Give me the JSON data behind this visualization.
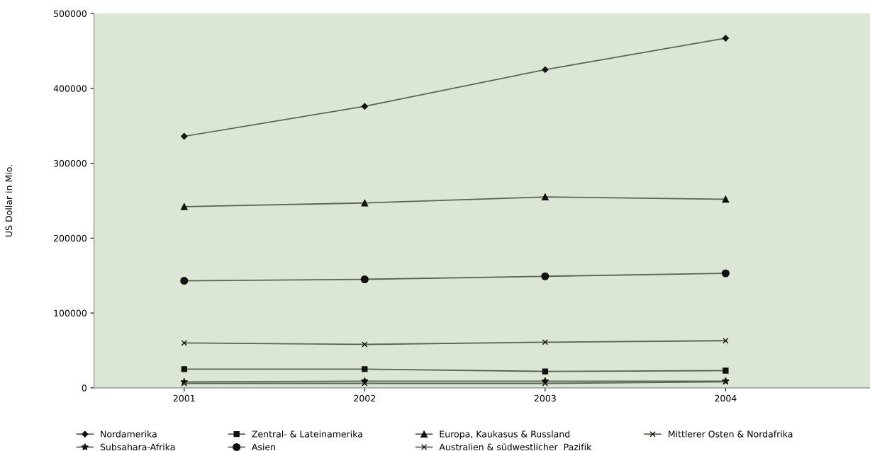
{
  "chart_data": {
    "type": "line",
    "ylabel": "US Dollar in Mio.",
    "categories": [
      "2001",
      "2002",
      "2003",
      "2004"
    ],
    "ylim": [
      0,
      500000
    ],
    "yticks": [
      0,
      100000,
      200000,
      300000,
      400000,
      500000
    ],
    "grid": false,
    "legend": "bottom",
    "line_style": "solid",
    "series": [
      {
        "name": "Nordamerika",
        "color": "#5a6652",
        "marker": "diamond",
        "values": [
          336000,
          376000,
          425000,
          467000
        ]
      },
      {
        "name": "Zentral- & Lateinamerika",
        "color": "#5a6652",
        "marker": "square",
        "values": [
          25000,
          25000,
          22000,
          23000
        ]
      },
      {
        "name": "Europa, Kaukasus & Russland",
        "color": "#5a6652",
        "marker": "triangle",
        "values": [
          242000,
          247000,
          255000,
          252000
        ]
      },
      {
        "name": "Mittlerer Osten & Nordafrika",
        "color": "#5a6652",
        "marker": "cross",
        "values": [
          60000,
          58000,
          61000,
          63000
        ]
      },
      {
        "name": "Subsahara-Afrika",
        "color": "#5a6652",
        "marker": "star",
        "values": [
          8000,
          9000,
          9000,
          9000
        ]
      },
      {
        "name": "Asien",
        "color": "#5a6652",
        "marker": "circle",
        "values": [
          143000,
          145000,
          149000,
          153000
        ]
      },
      {
        "name": "Australien & südwestlicher  Pazifik",
        "color": "#5a6652",
        "marker": "cross",
        "values": [
          6000,
          6000,
          6000,
          8000
        ]
      }
    ]
  }
}
